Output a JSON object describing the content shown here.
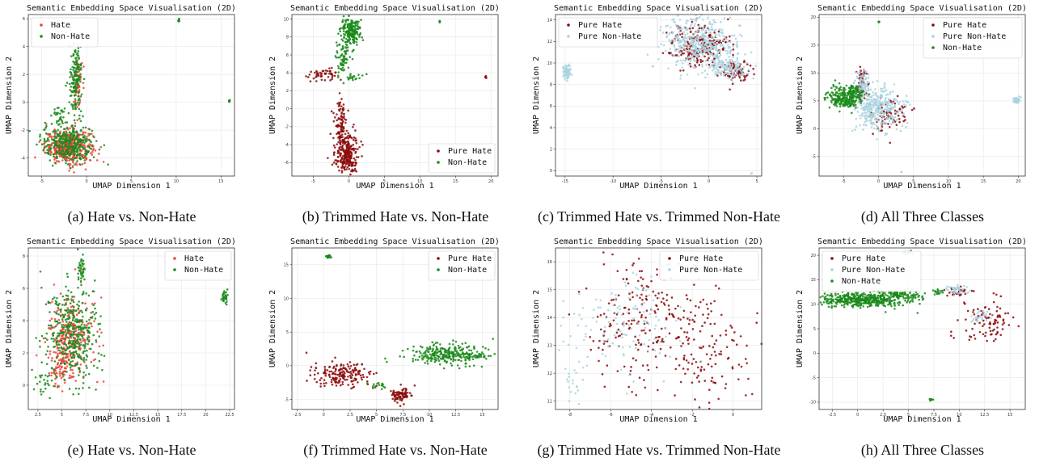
{
  "figure": {
    "colors": {
      "hate": "#e8473a",
      "non_hate": "#1a8a1a",
      "pure_hate": "#8b0a0a",
      "pure_non_hate": "#a9d3e0",
      "grid": "#e6e6e6",
      "axis": "#333333"
    }
  },
  "chart_data": [
    {
      "type": "scatter",
      "caption": "(a) Hate vs. Non-Hate",
      "title": "Semantic Embedding Space Visualisation (2D)",
      "xlabel": "UMAP Dimension 1",
      "ylabel": "UMAP Dimension 2",
      "xlim": [
        -6.5,
        16.5
      ],
      "ylim": [
        -5.3,
        6.3
      ],
      "xticks": [
        -5,
        0,
        5,
        10,
        15
      ],
      "yticks": [
        -4,
        -2,
        0,
        2,
        4,
        6
      ],
      "legend_position": "top-left",
      "grid": true,
      "series": [
        {
          "name": "Hate",
          "color": "#e8473a",
          "clusters": [
            {
              "cx": -2.0,
              "cy": -3.2,
              "sx": 1.3,
              "sy": 0.6,
              "n": 420
            },
            {
              "cx": -1.0,
              "cy": 1.2,
              "sx": 0.25,
              "sy": 1.2,
              "n": 60
            }
          ]
        },
        {
          "name": "Non-Hate",
          "color": "#1a8a1a",
          "clusters": [
            {
              "cx": -2.0,
              "cy": -3.0,
              "sx": 1.5,
              "sy": 0.7,
              "n": 320
            },
            {
              "cx": -1.2,
              "cy": 1.6,
              "sx": 0.35,
              "sy": 1.3,
              "n": 160
            },
            {
              "cx": -3.0,
              "cy": -1.0,
              "sx": 0.4,
              "sy": 0.4,
              "n": 30
            },
            {
              "cx": 10.3,
              "cy": 5.9,
              "sx": 0.05,
              "sy": 0.05,
              "n": 8
            },
            {
              "cx": 15.9,
              "cy": 0.1,
              "sx": 0.05,
              "sy": 0.05,
              "n": 8
            }
          ]
        }
      ]
    },
    {
      "type": "scatter",
      "caption": "(b) Trimmed Hate vs. Non-Hate",
      "title": "Semantic Embedding Space Visualisation (2D)",
      "xlabel": "UMAP Dimension 1",
      "ylabel": "UMAP Dimension 2",
      "xlim": [
        -8,
        21
      ],
      "ylim": [
        -7.5,
        10.5
      ],
      "xticks": [
        -5,
        0,
        5,
        10,
        15,
        20
      ],
      "yticks": [
        -6,
        -4,
        -2,
        0,
        2,
        4,
        6,
        8,
        10
      ],
      "legend_position": "bottom-right",
      "grid": true,
      "series": [
        {
          "name": "Pure Hate",
          "color": "#8b0a0a",
          "clusters": [
            {
              "cx": -0.3,
              "cy": -5.0,
              "sx": 0.8,
              "sy": 1.2,
              "n": 260
            },
            {
              "cx": -1.2,
              "cy": -1.5,
              "sx": 0.45,
              "sy": 1.3,
              "n": 90
            },
            {
              "cx": -3.5,
              "cy": 3.8,
              "sx": 1.2,
              "sy": 0.3,
              "n": 50
            },
            {
              "cx": 19.3,
              "cy": 3.5,
              "sx": 0.05,
              "sy": 0.05,
              "n": 6
            }
          ]
        },
        {
          "name": "Non-Hate",
          "color": "#1a8a1a",
          "clusters": [
            {
              "cx": 0.2,
              "cy": 8.6,
              "sx": 0.7,
              "sy": 0.7,
              "n": 200
            },
            {
              "cx": -0.8,
              "cy": 5.6,
              "sx": 0.5,
              "sy": 1.0,
              "n": 70
            },
            {
              "cx": 0.5,
              "cy": 3.6,
              "sx": 0.8,
              "sy": 0.2,
              "n": 20
            },
            {
              "cx": 12.8,
              "cy": 9.7,
              "sx": 0.05,
              "sy": 0.05,
              "n": 4
            }
          ]
        }
      ]
    },
    {
      "type": "scatter",
      "caption": "(c) Trimmed Hate vs. Trimmed Non-Hate",
      "title": "Semantic Embedding Space Visualisation (2D)",
      "xlabel": "UMAP Dimension 1",
      "ylabel": "UMAP Dimension 2",
      "xlim": [
        -16,
        5.5
      ],
      "ylim": [
        -0.5,
        14.5
      ],
      "xticks": [
        -15,
        -10,
        -5,
        0,
        5
      ],
      "yticks": [
        0,
        2,
        4,
        6,
        8,
        10,
        12,
        14
      ],
      "legend_position": "top-left",
      "grid": true,
      "series": [
        {
          "name": "Pure Hate",
          "color": "#8b0a0a",
          "clusters": [
            {
              "cx": -1.0,
              "cy": 11.5,
              "sx": 1.6,
              "sy": 1.0,
              "n": 230
            },
            {
              "cx": 3.0,
              "cy": 9.2,
              "sx": 0.8,
              "sy": 0.5,
              "n": 80
            }
          ]
        },
        {
          "name": "Pure Non-Hate",
          "color": "#a9d3e0",
          "clusters": [
            {
              "cx": -1.2,
              "cy": 11.8,
              "sx": 2.0,
              "sy": 1.2,
              "n": 420
            },
            {
              "cx": 2.2,
              "cy": 9.5,
              "sx": 1.2,
              "sy": 0.6,
              "n": 120
            },
            {
              "cx": -14.8,
              "cy": 9.2,
              "sx": 0.2,
              "sy": 0.35,
              "n": 70
            },
            {
              "cx": 4.5,
              "cy": -0.2,
              "sx": 0.05,
              "sy": 0.05,
              "n": 2
            }
          ]
        }
      ]
    },
    {
      "type": "scatter",
      "caption": "(d) All Three Classes",
      "title": "Semantic Embedding Space Visualisation (2D)",
      "xlabel": "UMAP Dimension 1",
      "ylabel": "UMAP Dimension 2",
      "xlim": [
        -8.5,
        21
      ],
      "ylim": [
        -8.5,
        20.5
      ],
      "xticks": [
        -5,
        0,
        5,
        10,
        15,
        20
      ],
      "yticks": [
        -5,
        0,
        5,
        10,
        15,
        20
      ],
      "legend_position": "top-right",
      "grid": true,
      "series": [
        {
          "name": "Pure Hate",
          "color": "#8b0a0a",
          "clusters": [
            {
              "cx": -2.5,
              "cy": 8.0,
              "sx": 0.4,
              "sy": 1.5,
              "n": 60
            },
            {
              "cx": 1.5,
              "cy": 2.5,
              "sx": 1.4,
              "sy": 1.5,
              "n": 80
            }
          ]
        },
        {
          "name": "Pure Non-Hate",
          "color": "#a9d3e0",
          "clusters": [
            {
              "cx": 0.0,
              "cy": 3.5,
              "sx": 1.7,
              "sy": 2.0,
              "n": 320
            },
            {
              "cx": -2.4,
              "cy": 7.8,
              "sx": 0.5,
              "sy": 1.3,
              "n": 90
            },
            {
              "cx": 19.8,
              "cy": 5.0,
              "sx": 0.25,
              "sy": 0.3,
              "n": 40
            },
            {
              "cx": 3.3,
              "cy": -7.8,
              "sx": 0.05,
              "sy": 0.05,
              "n": 2
            }
          ]
        },
        {
          "name": "Non-Hate",
          "color": "#1a8a1a",
          "clusters": [
            {
              "cx": -5.0,
              "cy": 5.5,
              "sx": 1.3,
              "sy": 1.0,
              "n": 240
            },
            {
              "cx": -3.5,
              "cy": 7.0,
              "sx": 0.5,
              "sy": 0.5,
              "n": 40
            },
            {
              "cx": 0.0,
              "cy": 19.2,
              "sx": 0.05,
              "sy": 0.05,
              "n": 4
            }
          ]
        }
      ]
    },
    {
      "type": "scatter",
      "caption": "(e) Hate vs. Non-Hate",
      "title": "Semantic Embedding Space Visualisation (2D)",
      "xlabel": "UMAP Dimension 1",
      "ylabel": "UMAP Dimension 2",
      "xlim": [
        1.5,
        23
      ],
      "ylim": [
        -1.5,
        8.5
      ],
      "xticks": [
        2.5,
        5.0,
        7.5,
        10.0,
        12.5,
        15.0,
        17.5,
        20.0,
        22.5
      ],
      "yticks": [
        0,
        2,
        4,
        6,
        8
      ],
      "legend_position": "top-right",
      "grid": true,
      "series": [
        {
          "name": "Hate",
          "color": "#e8473a",
          "clusters": [
            {
              "cx": 5.8,
              "cy": 3.0,
              "sx": 1.2,
              "sy": 1.3,
              "n": 300
            },
            {
              "cx": 4.8,
              "cy": 0.8,
              "sx": 0.5,
              "sy": 0.5,
              "n": 50
            }
          ]
        },
        {
          "name": "Non-Hate",
          "color": "#1a8a1a",
          "clusters": [
            {
              "cx": 6.0,
              "cy": 3.2,
              "sx": 1.3,
              "sy": 1.5,
              "n": 380
            },
            {
              "cx": 7.0,
              "cy": 7.2,
              "sx": 0.2,
              "sy": 0.5,
              "n": 40
            },
            {
              "cx": 3.0,
              "cy": 0.2,
              "sx": 0.6,
              "sy": 0.5,
              "n": 25
            },
            {
              "cx": 22.0,
              "cy": 5.5,
              "sx": 0.15,
              "sy": 0.25,
              "n": 30
            }
          ]
        }
      ]
    },
    {
      "type": "scatter",
      "caption": "(f) Trimmed Hate vs. Non-Hate",
      "title": "Semantic Embedding Space Visualisation (2D)",
      "xlabel": "UMAP Dimension 1",
      "ylabel": "UMAP Dimension 2",
      "xlim": [
        -3,
        16.5
      ],
      "ylim": [
        -6.5,
        17.5
      ],
      "xticks": [
        -2.5,
        0.0,
        2.5,
        5.0,
        7.5,
        10.0,
        12.5,
        15.0
      ],
      "yticks": [
        -5,
        0,
        5,
        10,
        15
      ],
      "legend_position": "top-right",
      "grid": true,
      "series": [
        {
          "name": "Pure Hate",
          "color": "#8b0a0a",
          "clusters": [
            {
              "cx": 1.5,
              "cy": -1.3,
              "sx": 1.4,
              "sy": 0.9,
              "n": 180
            },
            {
              "cx": 7.3,
              "cy": -4.2,
              "sx": 0.5,
              "sy": 0.5,
              "n": 90
            }
          ]
        },
        {
          "name": "Non-Hate",
          "color": "#1a8a1a",
          "clusters": [
            {
              "cx": 11.5,
              "cy": 1.8,
              "sx": 1.6,
              "sy": 0.8,
              "n": 260
            },
            {
              "cx": 0.5,
              "cy": 16.2,
              "sx": 0.12,
              "sy": 0.12,
              "n": 20
            },
            {
              "cx": 5.0,
              "cy": -3.0,
              "sx": 0.6,
              "sy": 0.3,
              "n": 15
            },
            {
              "cx": 14.5,
              "cy": 1.5,
              "sx": 0.7,
              "sy": 0.25,
              "n": 30
            }
          ]
        }
      ]
    },
    {
      "type": "scatter",
      "caption": "(g) Trimmed Hate vs. Trimmed Non-Hate",
      "title": "Semantic Embedding Space Visualisation (2D)",
      "xlabel": "UMAP Dimension 1",
      "ylabel": "UMAP Dimension 2",
      "xlim": [
        -8.7,
        1.4
      ],
      "ylim": [
        10.7,
        16.5
      ],
      "xticks": [
        -8,
        -6,
        -4,
        -2,
        0
      ],
      "yticks": [
        11,
        12,
        13,
        14,
        15,
        16
      ],
      "legend_position": "top-right",
      "grid": true,
      "series": [
        {
          "name": "Pure Hate",
          "color": "#8b0a0a",
          "clusters": [
            {
              "cx": -4.0,
              "cy": 14.0,
              "sx": 1.6,
              "sy": 1.2,
              "n": 260
            },
            {
              "cx": -1.0,
              "cy": 12.5,
              "sx": 1.0,
              "sy": 0.8,
              "n": 90
            }
          ]
        },
        {
          "name": "Pure Non-Hate",
          "color": "#a9d3e0",
          "clusters": [
            {
              "cx": -5.5,
              "cy": 13.8,
              "sx": 1.4,
              "sy": 0.9,
              "n": 130
            },
            {
              "cx": -7.8,
              "cy": 11.8,
              "sx": 0.3,
              "sy": 0.5,
              "n": 20
            }
          ]
        }
      ]
    },
    {
      "type": "scatter",
      "caption": "(h) All Three Classes",
      "title": "Semantic Embedding Space Visualisation (2D)",
      "xlabel": "UMAP Dimension 1",
      "ylabel": "UMAP Dimension 2",
      "xlim": [
        -3.8,
        16.5
      ],
      "ylim": [
        -11.5,
        21.5
      ],
      "xticks": [
        -2.5,
        0.0,
        2.5,
        5.0,
        7.5,
        10.0,
        12.5,
        15.0
      ],
      "yticks": [
        -10,
        -5,
        0,
        5,
        10,
        15,
        20
      ],
      "legend_position": "top-left",
      "grid": true,
      "series": [
        {
          "name": "Pure Hate",
          "color": "#8b0a0a",
          "clusters": [
            {
              "cx": 13.0,
              "cy": 6.5,
              "sx": 1.4,
              "sy": 2.5,
              "n": 90
            },
            {
              "cx": 9.8,
              "cy": 12.5,
              "sx": 0.5,
              "sy": 0.5,
              "n": 30
            }
          ]
        },
        {
          "name": "Pure Non-Hate",
          "color": "#a9d3e0",
          "clusters": [
            {
              "cx": 9.7,
              "cy": 13.0,
              "sx": 0.6,
              "sy": 0.4,
              "n": 40
            },
            {
              "cx": 12.0,
              "cy": 7.5,
              "sx": 0.6,
              "sy": 0.6,
              "n": 25
            }
          ]
        },
        {
          "name": "Non-Hate",
          "color": "#1a8a1a",
          "clusters": [
            {
              "cx": 0.5,
              "cy": 11.0,
              "sx": 2.2,
              "sy": 0.8,
              "n": 450
            },
            {
              "cx": 4.5,
              "cy": 12.0,
              "sx": 1.0,
              "sy": 0.5,
              "n": 80
            },
            {
              "cx": 5.0,
              "cy": 20.5,
              "sx": 0.3,
              "sy": 0.2,
              "n": 10
            },
            {
              "cx": 7.2,
              "cy": -9.5,
              "sx": 0.08,
              "sy": 0.1,
              "n": 8
            },
            {
              "cx": 8.0,
              "cy": 12.5,
              "sx": 0.3,
              "sy": 0.3,
              "n": 15
            }
          ]
        }
      ]
    }
  ]
}
